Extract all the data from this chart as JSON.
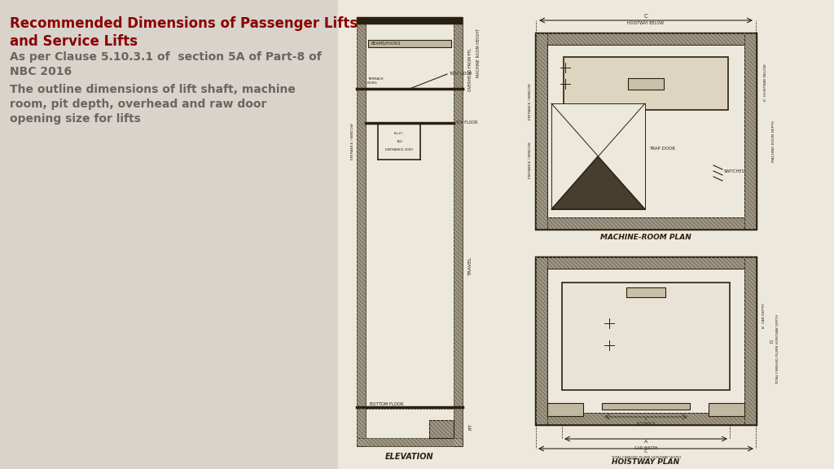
{
  "bg_color_left": "#D8D3CB",
  "bg_color_right": "#EDE8DC",
  "line_color": "#2A2010",
  "wall_color": "#9A9080",
  "wall_fill": "#7A7060",
  "inner_fill": "#EDE8DC",
  "title_text1": "Recommended Dimensions of Passenger Lifts",
  "title_text2": "and Service Lifts",
  "title_color": "#8B0000",
  "subtitle1": "As per Clause 5.10.3.1 of  section 5A of Part-8 of",
  "subtitle1b": "NBC 2016",
  "subtitle2a": "The outline dimensions of lift shaft, machine",
  "subtitle2b": "room, pit depth, overhead and raw door",
  "subtitle2c": "opening size for lifts",
  "text_color": "#6A6560",
  "title_fontsize": 12,
  "subtitle_fontsize": 10
}
